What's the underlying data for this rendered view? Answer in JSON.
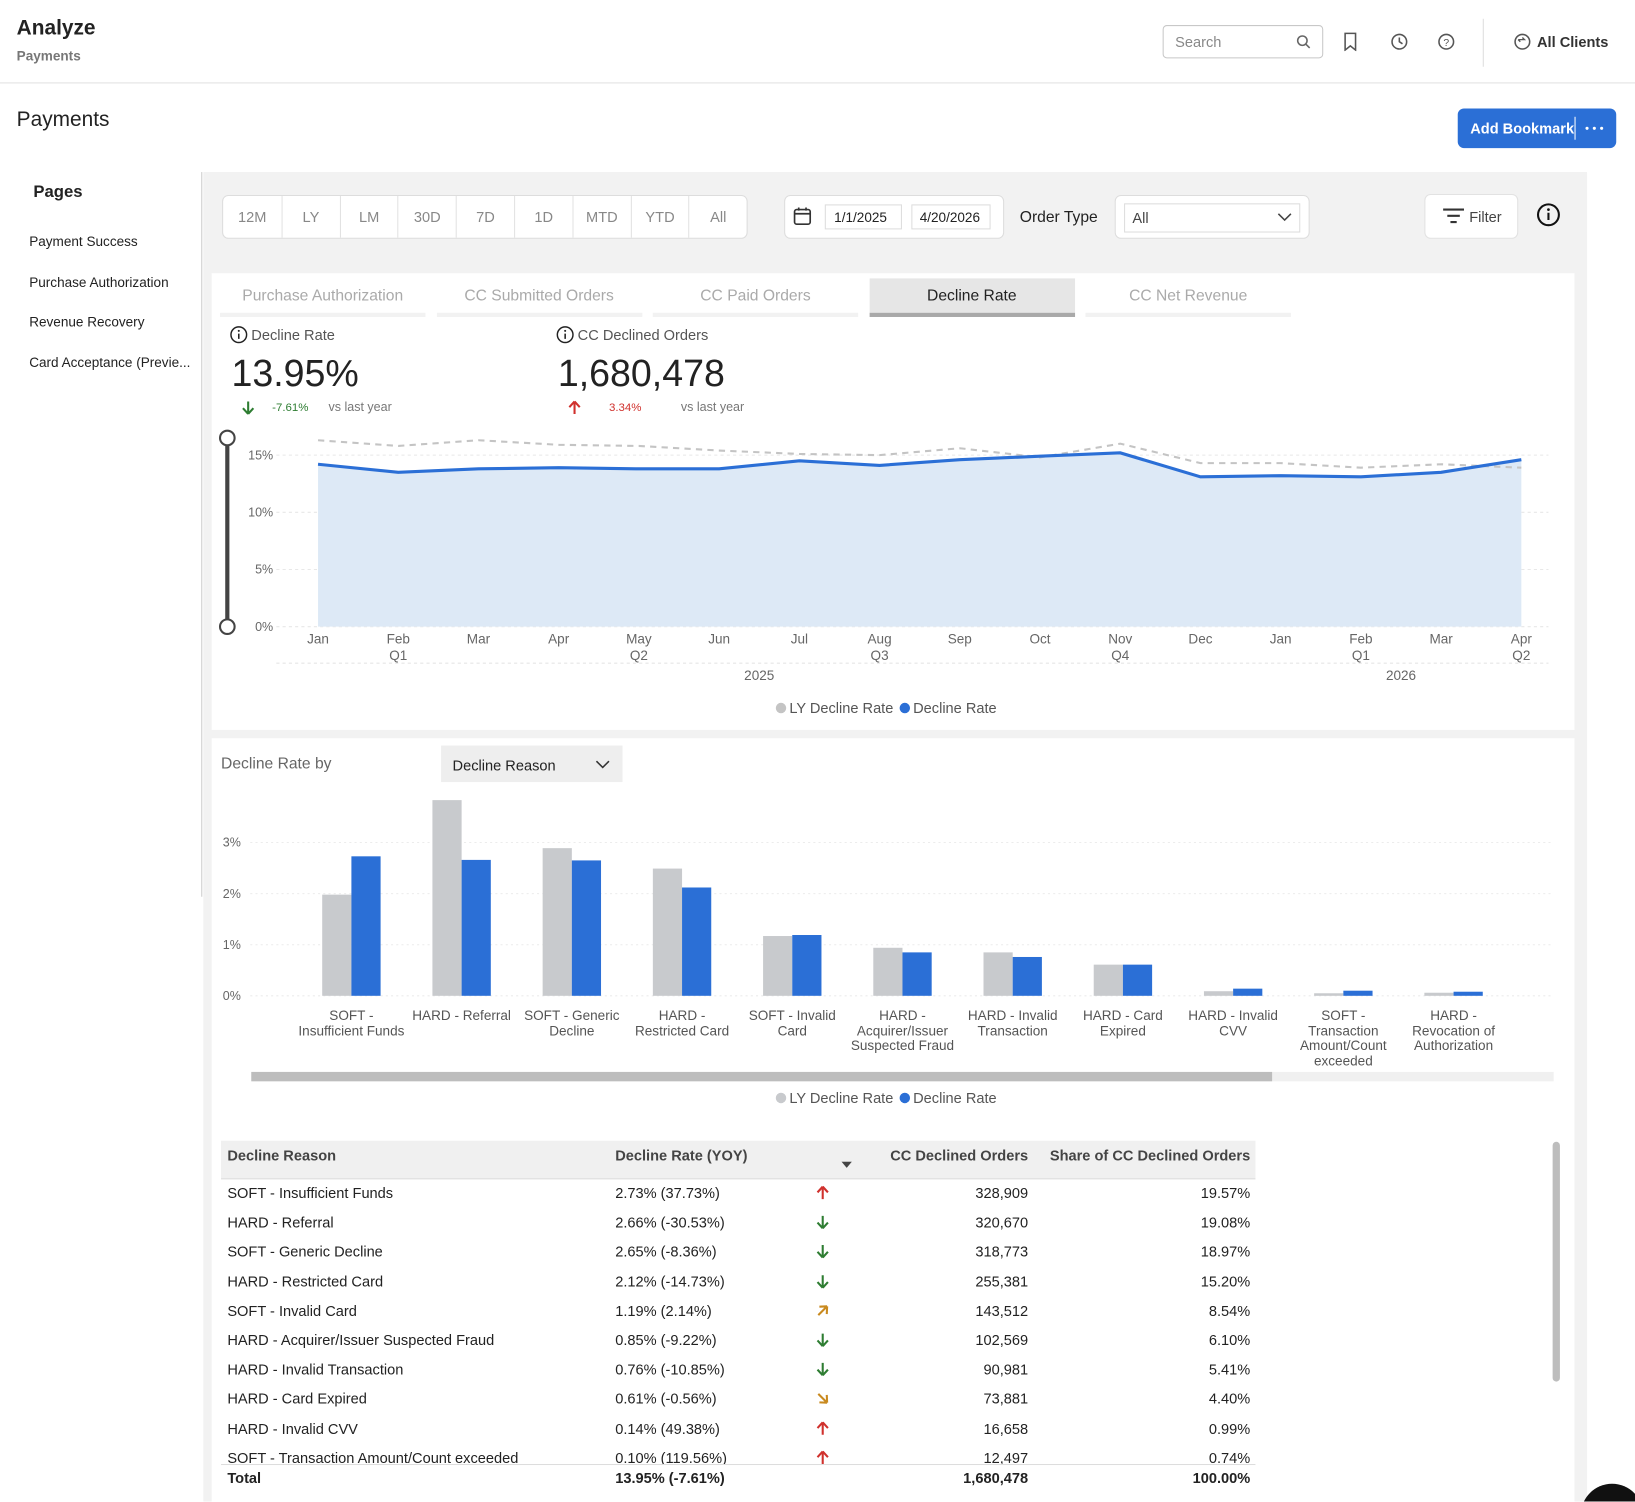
{
  "header": {
    "title": "Analyze",
    "subtitle": "Payments",
    "search_placeholder": "Search",
    "client": "All Clients"
  },
  "page": {
    "title": "Payments",
    "bookmark_button": "Add Bookmark"
  },
  "sidebar": {
    "title": "Pages",
    "items": [
      "Payment Success",
      "Purchase Authorization",
      "Revenue Recovery",
      "Card Acceptance (Previe..."
    ]
  },
  "filters": {
    "periods": [
      "12M",
      "LY",
      "LM",
      "30D",
      "7D",
      "1D",
      "MTD",
      "YTD",
      "All"
    ],
    "start_date": "1/1/2025",
    "end_date": "4/20/2026",
    "order_type_label": "Order Type",
    "order_type": "All",
    "filter_button": "Filter"
  },
  "tabs": {
    "items": [
      "Purchase Authorization",
      "CC Submitted Orders",
      "CC Paid Orders",
      "Decline Rate",
      "CC Net Revenue"
    ],
    "active": 3
  },
  "kpis": [
    {
      "label": "Decline Rate",
      "value": "13.95%",
      "change": "-7.61%",
      "direction": "down",
      "comparison": "vs last year"
    },
    {
      "label": "CC Declined Orders",
      "value": "1,680,478",
      "change": "3.34%",
      "direction": "up",
      "comparison": "vs last year"
    }
  ],
  "chart_data": [
    {
      "type": "line",
      "categories": [
        "Jan",
        "Feb",
        "Mar",
        "Apr",
        "May",
        "Jun",
        "Jul",
        "Aug",
        "Sep",
        "Oct",
        "Nov",
        "Dec",
        "Jan",
        "Feb",
        "Mar",
        "Apr"
      ],
      "quarters": [
        null,
        "Q1",
        null,
        null,
        "Q2",
        null,
        null,
        "Q3",
        null,
        null,
        "Q4",
        null,
        null,
        "Q1",
        null,
        "Q2"
      ],
      "years": [
        "2025",
        "2026"
      ],
      "ylim": [
        0,
        16.5
      ],
      "yticks": [
        {
          "value": 0,
          "label": "0%"
        },
        {
          "value": 5,
          "label": "5%"
        },
        {
          "value": 10,
          "label": "10%"
        },
        {
          "value": 15,
          "label": "15%"
        }
      ],
      "grid": true,
      "series": [
        {
          "name": "LY Decline Rate",
          "color": "#c4c4c4",
          "values": [
            16.3,
            15.8,
            16.3,
            15.9,
            15.8,
            15.4,
            15.1,
            15.0,
            15.6,
            14.8,
            16.0,
            14.3,
            14.3,
            13.9,
            14.2,
            13.9
          ]
        },
        {
          "name": "Decline Rate",
          "color": "#2b6fd6",
          "values": [
            14.2,
            13.5,
            13.8,
            13.9,
            13.8,
            13.8,
            14.5,
            14.1,
            14.6,
            14.9,
            15.2,
            13.1,
            13.2,
            13.1,
            13.5,
            14.6
          ]
        }
      ]
    },
    {
      "type": "bar",
      "categories": [
        "SOFT - Insufficient Funds",
        "HARD - Referral",
        "SOFT - Generic Decline",
        "HARD - Restricted Card",
        "SOFT - Invalid Card",
        "HARD - Acquirer/Issuer Suspected Fraud",
        "HARD - Invalid Transaction",
        "HARD - Card Expired",
        "HARD - Invalid CVV",
        "SOFT - Transaction Amount/Count exceeded",
        "HARD - Revocation of Authorization"
      ],
      "ylim": [
        0,
        4
      ],
      "yticks": [
        {
          "value": 0,
          "label": "0%"
        },
        {
          "value": 1,
          "label": "1%"
        },
        {
          "value": 2,
          "label": "2%"
        },
        {
          "value": 3,
          "label": "3%"
        }
      ],
      "grid": true,
      "series": [
        {
          "name": "LY Decline Rate",
          "color": "#c8cacd",
          "values": [
            1.98,
            3.83,
            2.89,
            2.49,
            1.17,
            0.94,
            0.85,
            0.61,
            0.09,
            0.05,
            0.06
          ]
        },
        {
          "name": "Decline Rate",
          "color": "#2b6fd6",
          "values": [
            2.73,
            2.66,
            2.65,
            2.12,
            1.19,
            0.85,
            0.76,
            0.61,
            0.14,
            0.1,
            0.08
          ]
        }
      ]
    }
  ],
  "breakdown": {
    "label": "Decline Rate by",
    "dimension": "Decline Reason"
  },
  "table": {
    "columns": [
      "Decline Reason",
      "Decline Rate (YOY)",
      "CC Declined Orders",
      "Share of CC Declined Orders"
    ],
    "rows": [
      [
        "SOFT - Insufficient Funds",
        "2.73% (37.73%)",
        "328,909",
        "19.57%"
      ],
      [
        "HARD - Referral",
        "2.66% (-30.53%)",
        "320,670",
        "19.08%"
      ],
      [
        "SOFT - Generic Decline",
        "2.65% (-8.36%)",
        "318,773",
        "18.97%"
      ],
      [
        "HARD - Restricted Card",
        "2.12% (-14.73%)",
        "255,381",
        "15.20%"
      ],
      [
        "SOFT - Invalid Card",
        "1.19% (2.14%)",
        "143,512",
        "8.54%"
      ],
      [
        "HARD - Acquirer/Issuer Suspected Fraud",
        "0.85% (-9.22%)",
        "102,569",
        "6.10%"
      ],
      [
        "HARD - Invalid Transaction",
        "0.76% (-10.85%)",
        "90,981",
        "5.41%"
      ],
      [
        "HARD - Card Expired",
        "0.61% (-0.56%)",
        "73,881",
        "4.40%"
      ],
      [
        "HARD - Invalid CVV",
        "0.14% (49.38%)",
        "16,658",
        "0.99%"
      ],
      [
        "SOFT - Transaction Amount/Count exceeded",
        "0.10% (119.56%)",
        "12,497",
        "0.74%"
      ]
    ],
    "trends": [
      "up",
      "down",
      "down",
      "down",
      "up-right",
      "down",
      "down",
      "down-right",
      "up",
      "up"
    ],
    "total": [
      "Total",
      "13.95% (-7.61%)",
      "1,680,478",
      "100.00%"
    ]
  }
}
